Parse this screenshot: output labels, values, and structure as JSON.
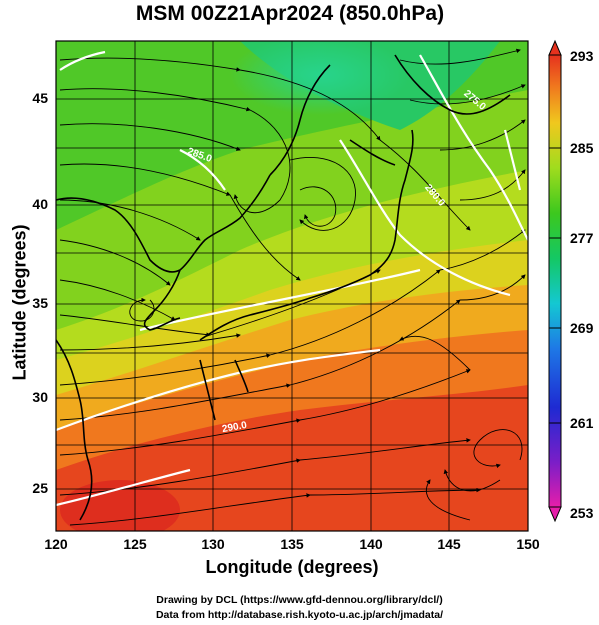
{
  "title": "MSM 00Z21Apr2024 (850.0hPa)",
  "x_axis": {
    "label": "Longitude (degrees)",
    "ticks": [
      "120",
      "125",
      "130",
      "135",
      "140",
      "145",
      "150"
    ],
    "range": [
      120,
      150
    ]
  },
  "y_axis": {
    "label": "Latitude  (degrees)",
    "ticks": [
      "25",
      "30",
      "35",
      "40",
      "45"
    ],
    "range": [
      22.4,
      47.6
    ]
  },
  "colorbar": {
    "ticks": [
      "293",
      "285",
      "277",
      "269",
      "261",
      "253"
    ],
    "range": [
      253,
      293
    ],
    "colors": [
      "#e60fa0",
      "#2a2ab8",
      "#1e7be6",
      "#11c8dc",
      "#1ed272",
      "#4ec81e",
      "#b4e61e",
      "#f0d21e",
      "#f58c1e",
      "#e63c1e"
    ]
  },
  "isotherm_labels": [
    "285.0",
    "280.0",
    "290.0",
    "275.0"
  ],
  "credits": {
    "line1": "Drawing by DCL (https://www.gfd-dennou.org/library/dcl/)",
    "line2": "Data from http://database.rish.kyoto-u.ac.jp/arch/jmadata/"
  },
  "colors": {
    "coastline": "#000000",
    "isotherm": "#ffffff",
    "streamline": "#000000"
  }
}
